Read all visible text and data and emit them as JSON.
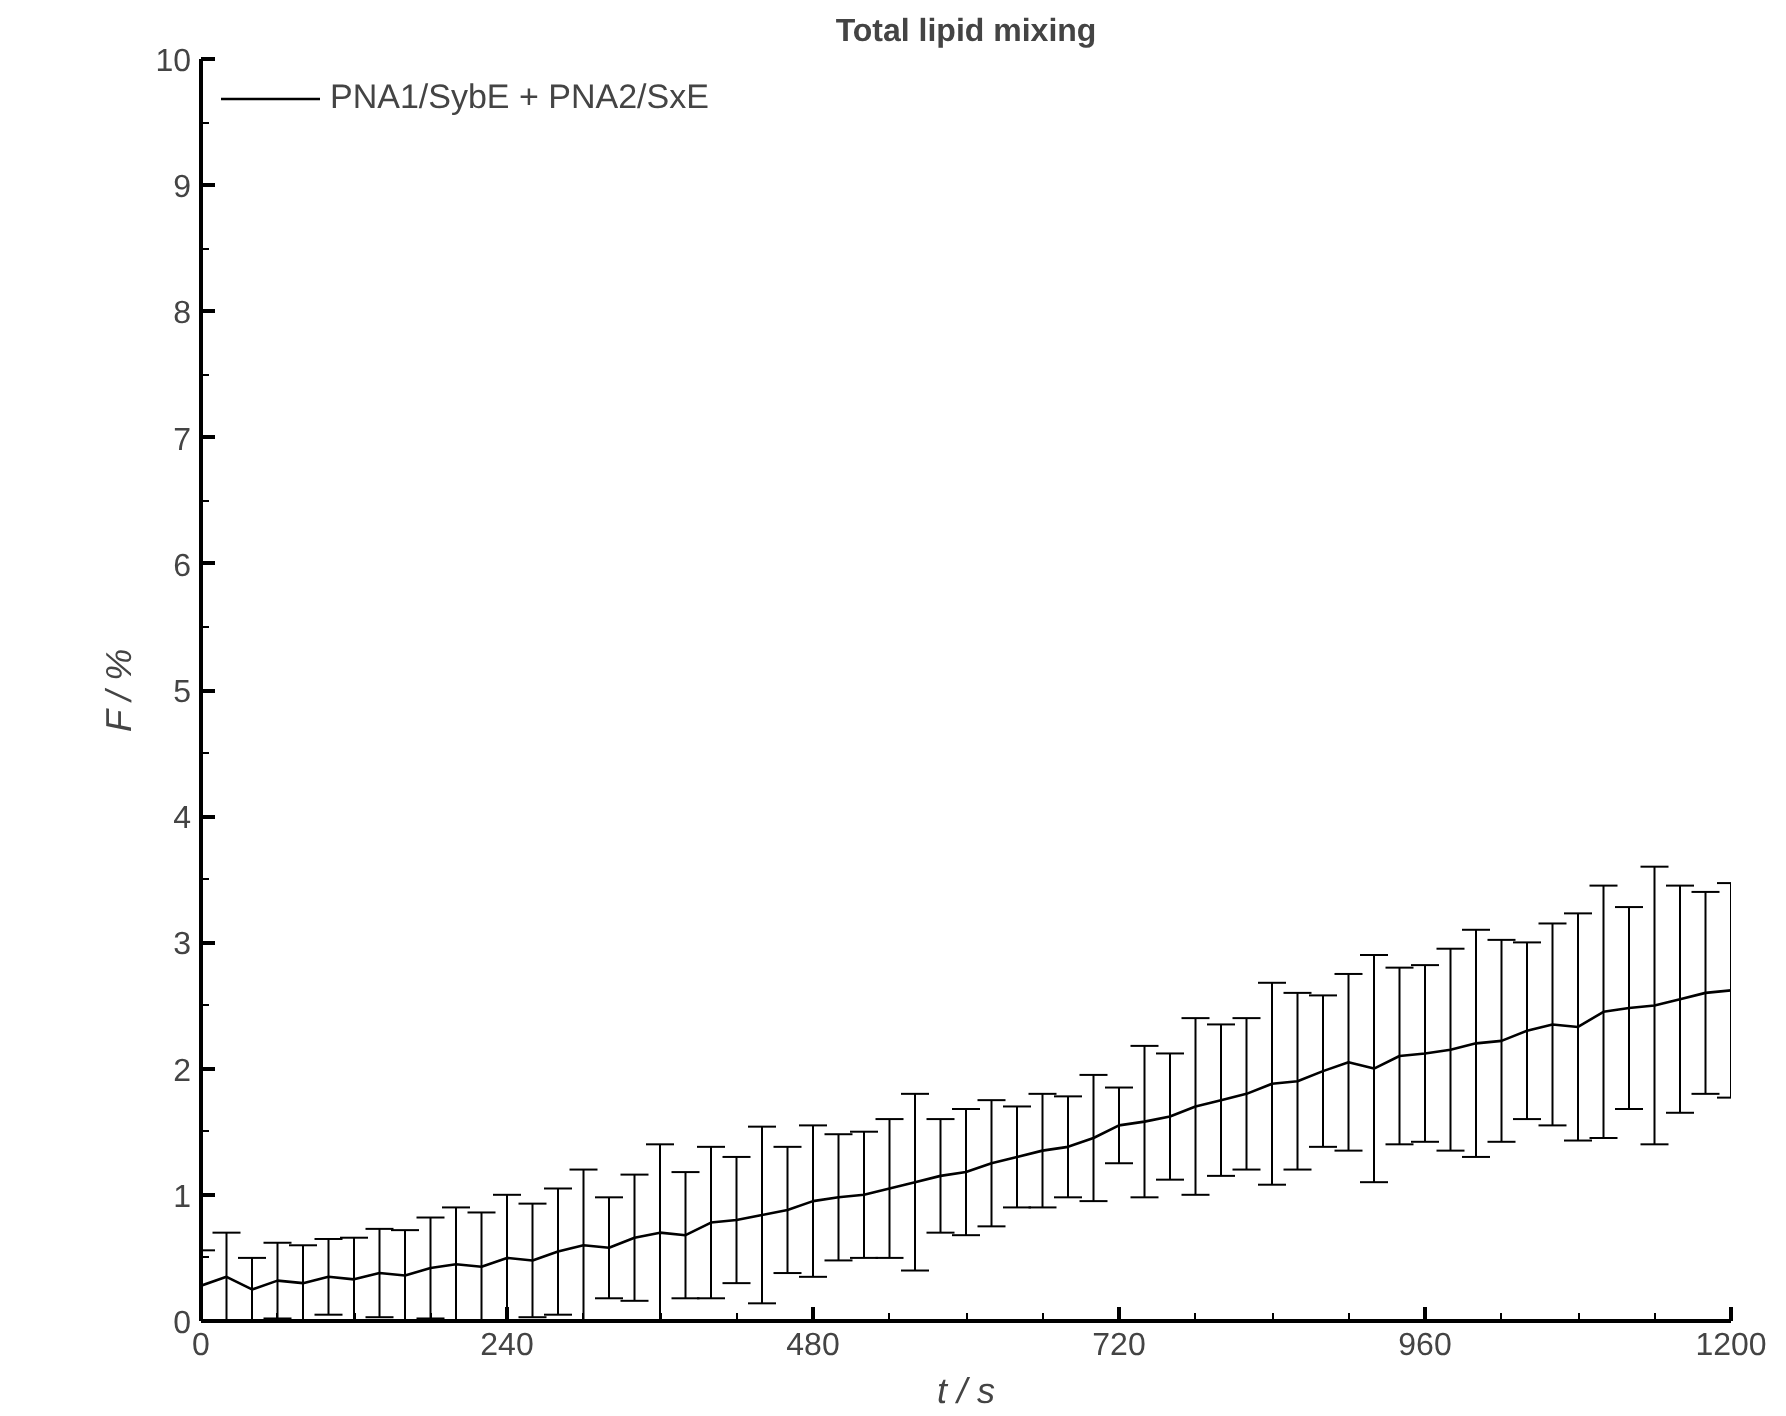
{
  "chart_data": {
    "type": "line",
    "title": "Total lipid mixing",
    "xlabel": "t / s",
    "ylabel": "F / %",
    "x": [
      0,
      20,
      40,
      60,
      80,
      100,
      120,
      140,
      160,
      180,
      200,
      220,
      240,
      260,
      280,
      300,
      320,
      340,
      360,
      380,
      400,
      420,
      440,
      460,
      480,
      500,
      520,
      540,
      560,
      580,
      600,
      620,
      640,
      660,
      680,
      700,
      720,
      740,
      760,
      780,
      800,
      820,
      840,
      860,
      880,
      900,
      920,
      940,
      960,
      980,
      1000,
      1020,
      1040,
      1060,
      1080,
      1100,
      1120,
      1140,
      1160,
      1180,
      1200
    ],
    "series": [
      {
        "name": "PNA1/SybE + PNA2/SxE",
        "color": "#000000",
        "values": [
          0.28,
          0.35,
          0.25,
          0.32,
          0.3,
          0.35,
          0.33,
          0.38,
          0.36,
          0.42,
          0.45,
          0.43,
          0.5,
          0.48,
          0.55,
          0.6,
          0.58,
          0.66,
          0.7,
          0.68,
          0.78,
          0.8,
          0.84,
          0.88,
          0.95,
          0.98,
          1.0,
          1.05,
          1.1,
          1.15,
          1.18,
          1.25,
          1.3,
          1.35,
          1.38,
          1.45,
          1.55,
          1.58,
          1.62,
          1.7,
          1.75,
          1.8,
          1.88,
          1.9,
          1.98,
          2.05,
          2.0,
          2.1,
          2.12,
          2.15,
          2.2,
          2.22,
          2.3,
          2.35,
          2.33,
          2.45,
          2.48,
          2.5,
          2.55,
          2.6,
          2.62
        ],
        "errors": [
          0.28,
          0.35,
          0.25,
          0.3,
          0.3,
          0.3,
          0.33,
          0.35,
          0.36,
          0.4,
          0.45,
          0.43,
          0.5,
          0.45,
          0.5,
          0.6,
          0.4,
          0.5,
          0.7,
          0.5,
          0.6,
          0.5,
          0.7,
          0.5,
          0.6,
          0.5,
          0.5,
          0.55,
          0.7,
          0.45,
          0.5,
          0.5,
          0.4,
          0.45,
          0.4,
          0.5,
          0.3,
          0.6,
          0.5,
          0.7,
          0.6,
          0.6,
          0.8,
          0.7,
          0.6,
          0.7,
          0.9,
          0.7,
          0.7,
          0.8,
          0.9,
          0.8,
          0.7,
          0.8,
          0.9,
          1.0,
          0.8,
          1.1,
          0.9,
          0.8,
          0.85
        ]
      }
    ],
    "xlim": [
      0,
      1200
    ],
    "xticks": [
      0,
      240,
      480,
      720,
      960,
      1200
    ],
    "ylim": [
      0,
      10
    ],
    "yticks": [
      0,
      1,
      2,
      3,
      4,
      5,
      6,
      7,
      8,
      9,
      10
    ],
    "legend": "top left",
    "grid": false,
    "marker": "none",
    "line_style": "solid"
  }
}
